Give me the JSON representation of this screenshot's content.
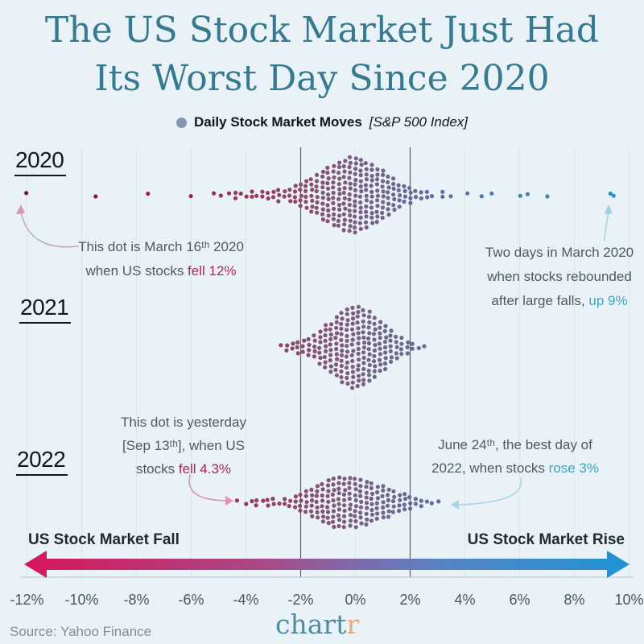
{
  "title": {
    "line1": "The US Stock Market Just Had",
    "line2": "Its Worst Day Since 2020"
  },
  "legend": {
    "label": "Daily Stock Market Moves",
    "sublabel": "[S&P 500 Index]",
    "dot_color": "#8495b2"
  },
  "rows": [
    {
      "year": "2020"
    },
    {
      "year": "2021"
    },
    {
      "year": "2022"
    }
  ],
  "annotations": {
    "a2020_left": {
      "line1": "This dot is March 16ᵗʰ 2020",
      "line2_prefix": "when US stocks ",
      "line2_highlight": "fell 12%"
    },
    "a2020_right": {
      "line1": "Two days in March 2020",
      "line2": "when stocks rebounded",
      "line3_prefix": "after large falls, ",
      "line3_highlight": "up 9%"
    },
    "a2022_left": {
      "line1": "This dot is yesterday",
      "line2": "[Sep 13ᵗʰ], when US",
      "line3_prefix": "stocks ",
      "line3_highlight": "fell 4.3%"
    },
    "a2022_right": {
      "line1": "June 24ᵗʰ, the best day of",
      "line2_prefix": "2022, when stocks ",
      "line2_highlight": "rose 3%"
    }
  },
  "gradient_arrow": {
    "left_label": "US Stock Market Fall",
    "right_label": "US Stock Market Rise",
    "color_stops": [
      "#d6175c",
      "#a84a86",
      "#7e6bac",
      "#5584c4",
      "#1f93d4"
    ]
  },
  "axis": {
    "ticks": [
      {
        "label": "-12%",
        "pct": -12
      },
      {
        "label": "-10%",
        "pct": -10
      },
      {
        "label": "-8%",
        "pct": -8
      },
      {
        "label": "-6%",
        "pct": -6
      },
      {
        "label": "-4%",
        "pct": -4
      },
      {
        "label": "-2%",
        "pct": -2
      },
      {
        "label": "0%",
        "pct": 0
      },
      {
        "label": "2%",
        "pct": 2
      },
      {
        "label": "4%",
        "pct": 4
      },
      {
        "label": "6%",
        "pct": 6
      },
      {
        "label": "8%",
        "pct": 8
      },
      {
        "label": "10%",
        "pct": 10
      }
    ],
    "ref_lines_pct": [
      -2,
      2
    ]
  },
  "source": "Source: Yahoo Finance",
  "logo": {
    "main": "chart",
    "accent": "r"
  },
  "chart_data": {
    "type": "scatter",
    "subtype": "beeswarm-histogram",
    "unit": "percent daily move",
    "x_range": [
      -12,
      10
    ],
    "grid": "light vertical lines at each 2% tick; dark reference lines at -2% and +2%",
    "legend_position": "top-center",
    "color_scale_stops": [
      {
        "pct": -12,
        "color": "#7e1130"
      },
      {
        "pct": -6,
        "color": "#9a2a4e"
      },
      {
        "pct": -3,
        "color": "#96405f"
      },
      {
        "pct": 0,
        "color": "#7b5e82"
      },
      {
        "pct": 3,
        "color": "#5f6f9d"
      },
      {
        "pct": 7,
        "color": "#3f86b5"
      },
      {
        "pct": 9.5,
        "color": "#2893c5"
      }
    ],
    "series": [
      {
        "name": "2020",
        "bins": [
          [
            -12,
            1
          ],
          [
            -9.5,
            1
          ],
          [
            -7.6,
            1
          ],
          [
            -6,
            1
          ],
          [
            -5.2,
            1
          ],
          [
            -4.9,
            1
          ],
          [
            -4.6,
            1
          ],
          [
            -4.4,
            2
          ],
          [
            -4.2,
            1
          ],
          [
            -4,
            1
          ],
          [
            -3.8,
            2
          ],
          [
            -3.6,
            1
          ],
          [
            -3.4,
            2
          ],
          [
            -3.2,
            2
          ],
          [
            -3,
            2
          ],
          [
            -2.8,
            3
          ],
          [
            -2.6,
            2
          ],
          [
            -2.4,
            3
          ],
          [
            -2.2,
            4
          ],
          [
            -2,
            5
          ],
          [
            -1.8,
            6
          ],
          [
            -1.6,
            7
          ],
          [
            -1.4,
            8
          ],
          [
            -1.2,
            10
          ],
          [
            -1,
            11
          ],
          [
            -0.8,
            12
          ],
          [
            -0.6,
            13
          ],
          [
            -0.4,
            14
          ],
          [
            -0.2,
            15
          ],
          [
            0,
            15
          ],
          [
            0.2,
            14
          ],
          [
            0.4,
            13
          ],
          [
            0.6,
            12
          ],
          [
            0.8,
            11
          ],
          [
            1,
            10
          ],
          [
            1.2,
            8
          ],
          [
            1.4,
            7
          ],
          [
            1.6,
            5
          ],
          [
            1.8,
            4
          ],
          [
            2,
            4
          ],
          [
            2.2,
            2
          ],
          [
            2.4,
            2
          ],
          [
            2.6,
            2
          ],
          [
            2.8,
            1
          ],
          [
            3.2,
            2
          ],
          [
            3.5,
            1
          ],
          [
            4.1,
            1
          ],
          [
            4.6,
            1
          ],
          [
            5,
            1
          ],
          [
            6,
            1
          ],
          [
            6.3,
            1
          ],
          [
            7,
            1
          ],
          [
            9.3,
            1
          ],
          [
            9.45,
            1
          ]
        ]
      },
      {
        "name": "2021",
        "bins": [
          [
            -2.7,
            1
          ],
          [
            -2.5,
            2
          ],
          [
            -2.3,
            2
          ],
          [
            -2.1,
            3
          ],
          [
            -1.9,
            3
          ],
          [
            -1.7,
            4
          ],
          [
            -1.5,
            5
          ],
          [
            -1.3,
            7
          ],
          [
            -1.1,
            9
          ],
          [
            -0.9,
            10
          ],
          [
            -0.7,
            12
          ],
          [
            -0.5,
            14
          ],
          [
            -0.3,
            15
          ],
          [
            -0.1,
            16
          ],
          [
            0.1,
            16
          ],
          [
            0.3,
            15
          ],
          [
            0.5,
            14
          ],
          [
            0.7,
            12
          ],
          [
            0.9,
            10
          ],
          [
            1.1,
            9
          ],
          [
            1.3,
            7
          ],
          [
            1.5,
            5
          ],
          [
            1.7,
            4
          ],
          [
            1.9,
            3
          ],
          [
            2.1,
            2
          ],
          [
            2.3,
            1
          ],
          [
            2.5,
            1
          ]
        ]
      },
      {
        "name": "2022",
        "bins": [
          [
            -4.3,
            1
          ],
          [
            -4,
            1
          ],
          [
            -3.8,
            1
          ],
          [
            -3.6,
            2
          ],
          [
            -3.4,
            1
          ],
          [
            -3.2,
            2
          ],
          [
            -3,
            2
          ],
          [
            -2.8,
            1
          ],
          [
            -2.6,
            2
          ],
          [
            -2.4,
            2
          ],
          [
            -2.2,
            3
          ],
          [
            -2,
            4
          ],
          [
            -1.8,
            5
          ],
          [
            -1.6,
            6
          ],
          [
            -1.4,
            7
          ],
          [
            -1.2,
            8
          ],
          [
            -1,
            9
          ],
          [
            -0.8,
            10
          ],
          [
            -0.6,
            10
          ],
          [
            -0.4,
            10
          ],
          [
            -0.2,
            10
          ],
          [
            0,
            10
          ],
          [
            0.2,
            9
          ],
          [
            0.4,
            9
          ],
          [
            0.6,
            8
          ],
          [
            0.8,
            7
          ],
          [
            1,
            7
          ],
          [
            1.2,
            6
          ],
          [
            1.4,
            5
          ],
          [
            1.6,
            4
          ],
          [
            1.8,
            4
          ],
          [
            2,
            3
          ],
          [
            2.2,
            2
          ],
          [
            2.4,
            2
          ],
          [
            2.6,
            1
          ],
          [
            2.8,
            1
          ],
          [
            3.05,
            1
          ]
        ]
      }
    ],
    "highlights": [
      {
        "series": "2020",
        "pct": -12,
        "note": "worst day shown (fell 12%)"
      },
      {
        "series": "2020",
        "pct": 9.3,
        "note": "rebound day (up 9%)"
      },
      {
        "series": "2020",
        "pct": 9.45,
        "note": "rebound day (up 9%)"
      },
      {
        "series": "2022",
        "pct": -4.3,
        "note": "yesterday (fell 4.3%)"
      },
      {
        "series": "2022",
        "pct": 3.05,
        "note": "best day of 2022 (rose 3%)"
      }
    ]
  }
}
